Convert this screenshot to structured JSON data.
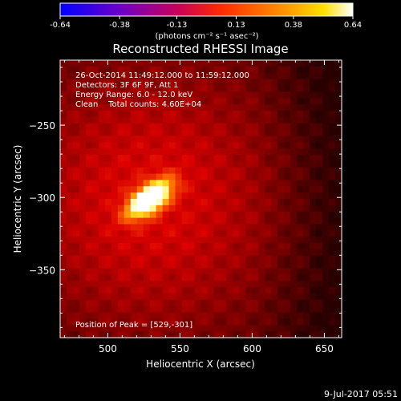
{
  "colorbar": {
    "tick_labels": [
      "-0.64",
      "-0.38",
      "-0.13",
      "0.13",
      "0.38",
      "0.64"
    ],
    "tick_values": [
      -0.64,
      -0.38,
      -0.13,
      0.13,
      0.38,
      0.64
    ],
    "range": [
      -0.64,
      0.64
    ],
    "units_label": "(photons cm⁻² s⁻¹ asec⁻²)",
    "colors": [
      "#0000ff",
      "#6a00c8",
      "#c8005a",
      "#ff2a00",
      "#ff8c00",
      "#ffe000",
      "#ffffff"
    ]
  },
  "chart_data": {
    "type": "heatmap",
    "title": "Reconstructed RHESSI Image",
    "xlabel": "Heliocentric X (arcsec)",
    "ylabel": "Heliocentric Y (arcsec)",
    "xlim": [
      467,
      662
    ],
    "ylim": [
      -397,
      -205
    ],
    "x_ticks": [
      500,
      550,
      600,
      650
    ],
    "y_ticks": [
      -250,
      -300,
      -350
    ],
    "x_tick_labels": [
      "500",
      "550",
      "600",
      "650"
    ],
    "y_tick_labels": [
      "−250",
      "−300",
      "−350"
    ],
    "peak": [
      529,
      -301
    ],
    "peak_value": 0.64,
    "info_lines": [
      "26-Oct-2014 11:49:12.000 to 11:59:12.000",
      "Detectors: 3F 6F 9F, Att 1",
      "Energy Range: 6.0 - 12.0 keV",
      "Clean    Total counts: 4.60E+04"
    ],
    "peak_label": "Position of Peak = [529,-301]"
  },
  "footer": {
    "timestamp": "9-Jul-2017 05:51"
  }
}
